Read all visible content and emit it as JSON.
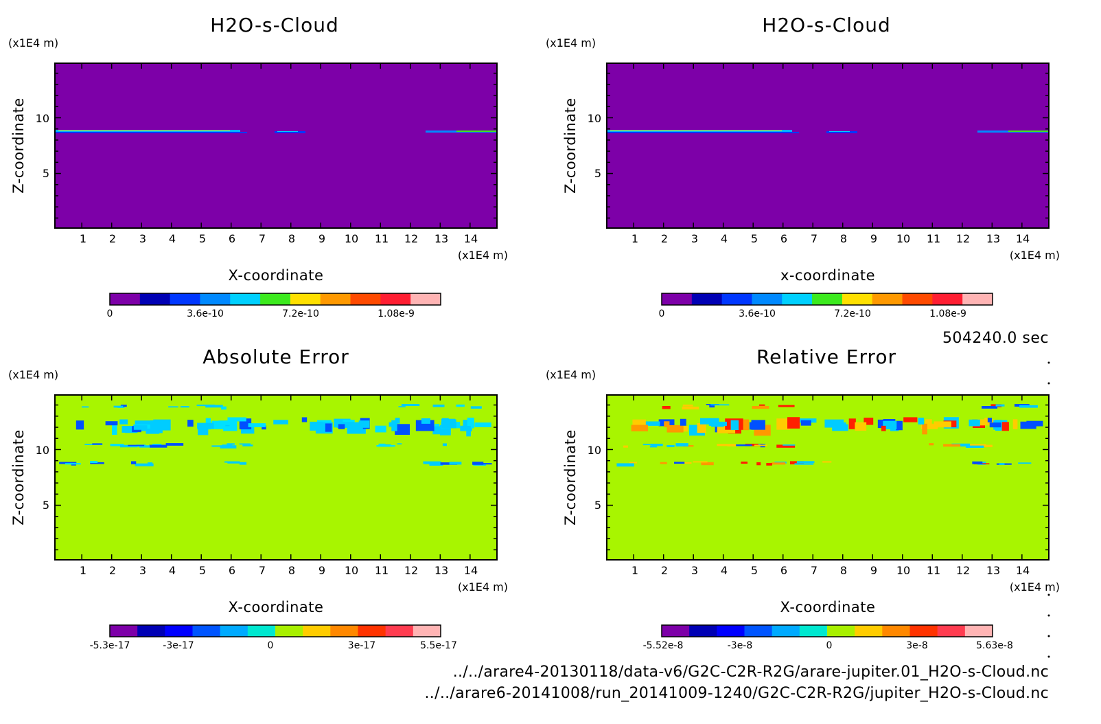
{
  "chart_data": [
    {
      "type": "heatmap",
      "title": "H2O-s-Cloud",
      "xlabel": "X-coordinate",
      "ylabel": "Z-coordinate",
      "x_unit": "(x1E4 m)",
      "y_unit": "(x1E4 m)",
      "xlim": [
        0.1,
        14.9
      ],
      "ylim": [
        0.1,
        14.9
      ],
      "x_ticks": [
        "1",
        "2",
        "3",
        "4",
        "5",
        "6",
        "7",
        "8",
        "9",
        "10",
        "11",
        "12",
        "13",
        "14"
      ],
      "y_ticks": [
        "5",
        "10"
      ],
      "colorbar": {
        "min": 0,
        "max": 1.2e-09,
        "tick_labels": [
          "0",
          "3.6e-10",
          "7.2e-10",
          "1.08e-9"
        ],
        "colors": [
          "#7d00a8",
          "#0000b4",
          "#0037ff",
          "#0089ff",
          "#00d0ff",
          "#3cea1e",
          "#ffe000",
          "#ff9900",
          "#ff4a00",
          "#ff1e32",
          "#ffb4b4"
        ]
      }
    },
    {
      "type": "heatmap",
      "title": "H2O-s-Cloud",
      "xlabel": "x-coordinate",
      "ylabel": "Z-coordinate",
      "x_unit": "(x1E4 m)",
      "y_unit": "(x1E4 m)",
      "xlim": [
        0.1,
        14.9
      ],
      "ylim": [
        0.1,
        14.9
      ],
      "x_ticks": [
        "1",
        "2",
        "3",
        "4",
        "5",
        "6",
        "7",
        "8",
        "9",
        "10",
        "11",
        "12",
        "13",
        "14"
      ],
      "y_ticks": [
        "5",
        "10"
      ],
      "colorbar": {
        "min": 0,
        "max": 1.2e-09,
        "tick_labels": [
          "0",
          "3.6e-10",
          "7.2e-10",
          "1.08e-9"
        ],
        "colors": [
          "#7d00a8",
          "#0000b4",
          "#0037ff",
          "#0089ff",
          "#00d0ff",
          "#3cea1e",
          "#ffe000",
          "#ff9900",
          "#ff4a00",
          "#ff1e32",
          "#ffb4b4"
        ]
      }
    },
    {
      "type": "heatmap",
      "title": "Absolute Error",
      "xlabel": "X-coordinate",
      "ylabel": "Z-coordinate",
      "x_unit": "(x1E4 m)",
      "y_unit": "(x1E4 m)",
      "xlim": [
        0.1,
        14.9
      ],
      "ylim": [
        0.1,
        14.9
      ],
      "x_ticks": [
        "1",
        "2",
        "3",
        "4",
        "5",
        "6",
        "7",
        "8",
        "9",
        "10",
        "11",
        "12",
        "13",
        "14"
      ],
      "y_ticks": [
        "5",
        "10"
      ],
      "colorbar": {
        "min": -5.3e-17,
        "max": 5.5e-17,
        "tick_labels": [
          "-5.3e-17",
          "-3e-17",
          "0",
          "3e-17",
          "5.5e-17"
        ],
        "colors": [
          "#7d00a8",
          "#0000b4",
          "#0000ff",
          "#0055ff",
          "#00aaff",
          "#00e8d0",
          "#a8f000",
          "#ffcc00",
          "#ff8800",
          "#ff3300",
          "#ff3c50",
          "#ffb4b4"
        ]
      }
    },
    {
      "type": "heatmap",
      "title": "Relative Error",
      "xlabel": "X-coordinate",
      "ylabel": "Z-coordinate",
      "x_unit": "(x1E4 m)",
      "y_unit": "(x1E4 m)",
      "xlim": [
        0.1,
        14.9
      ],
      "ylim": [
        0.1,
        14.9
      ],
      "x_ticks": [
        "1",
        "2",
        "3",
        "4",
        "5",
        "6",
        "7",
        "8",
        "9",
        "10",
        "11",
        "12",
        "13",
        "14"
      ],
      "y_ticks": [
        "5",
        "10"
      ],
      "colorbar": {
        "min": -5.52e-08,
        "max": 5.63e-08,
        "tick_labels": [
          "-5.52e-8",
          "-3e-8",
          "0",
          "3e-8",
          "5.63e-8"
        ],
        "colors": [
          "#7d00a8",
          "#0000b4",
          "#0000ff",
          "#0055ff",
          "#00aaff",
          "#00e8d0",
          "#a8f000",
          "#ffcc00",
          "#ff8800",
          "#ff3300",
          "#ff3c50",
          "#ffb4b4"
        ]
      }
    }
  ],
  "time_label": "504240.0 sec",
  "file_paths": [
    "../../arare4-20130118/data-v6/G2C-C2R-R2G/arare-jupiter.01_H2O-s-Cloud.nc",
    "../../arare6-20141008/run_20141009-1240/G2C-C2R-R2G/jupiter_H2O-s-Cloud.nc"
  ],
  "colors": {
    "cloud_background": "#7d00a8",
    "error_background": "#a8f500",
    "error_cyan": "#00ccff",
    "error_blue": "#0050ff",
    "error_red": "#ff2000",
    "error_orange": "#ff9900"
  }
}
